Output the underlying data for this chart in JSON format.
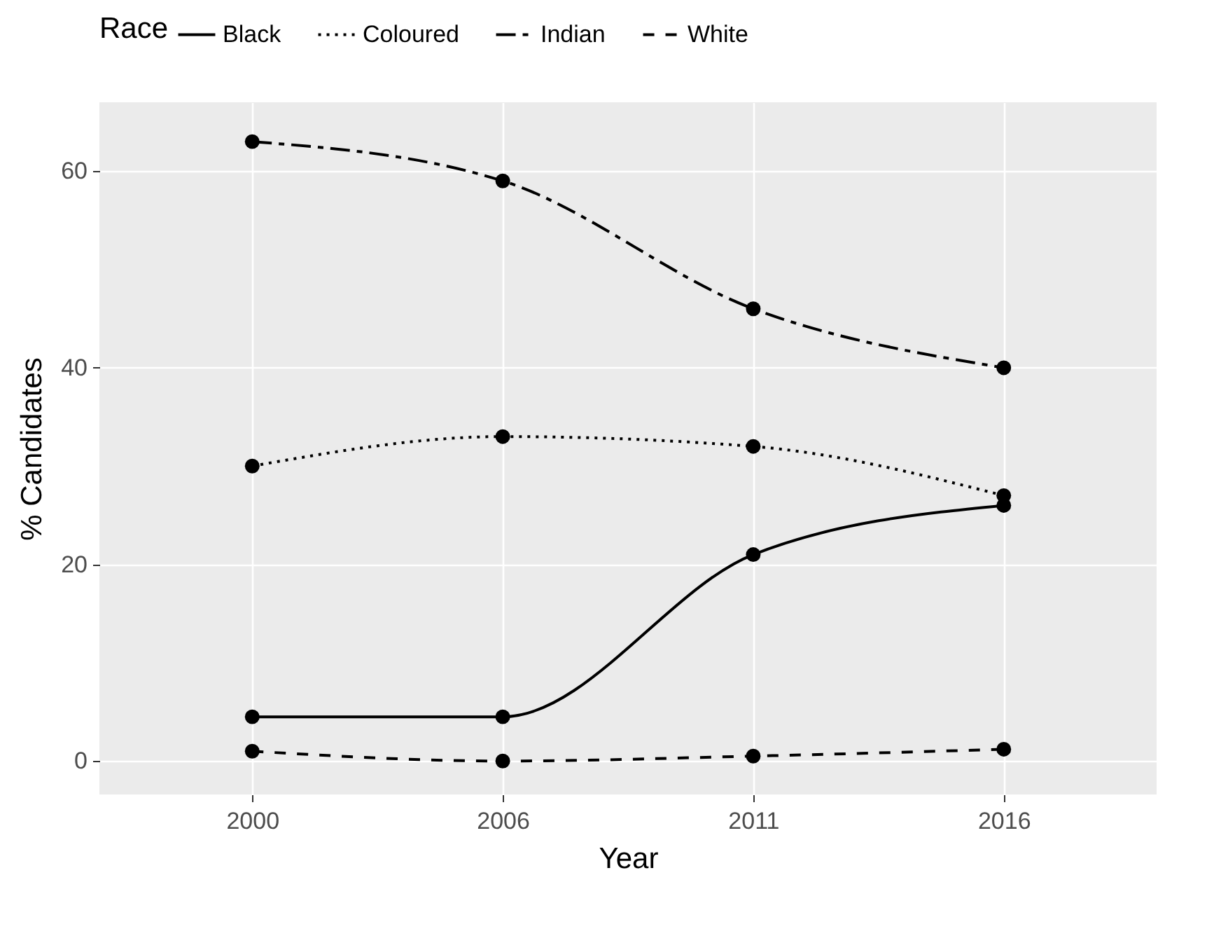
{
  "chart_data": {
    "type": "line",
    "xlabel": "Year",
    "ylabel": "% Candidates",
    "legend_title": "Race",
    "categories": [
      "2000",
      "2006",
      "2011",
      "2016"
    ],
    "series": [
      {
        "name": "Black",
        "color": "#000000",
        "line_style": "solid",
        "values": [
          4.5,
          4.5,
          21,
          26
        ]
      },
      {
        "name": "Coloured",
        "color": "#000000",
        "line_style": "dotted",
        "values": [
          30,
          33,
          32,
          27
        ]
      },
      {
        "name": "Indian",
        "color": "#000000",
        "line_style": "dashdot",
        "values": [
          63,
          59,
          46,
          40
        ]
      },
      {
        "name": "White",
        "color": "#000000",
        "line_style": "dashed",
        "values": [
          1,
          0,
          0.5,
          1.2
        ]
      }
    ],
    "ylim": [
      -3.4,
      67
    ],
    "yticks": [
      0,
      20,
      40,
      60
    ],
    "grid": true,
    "legend": "top",
    "marker": "circle"
  }
}
